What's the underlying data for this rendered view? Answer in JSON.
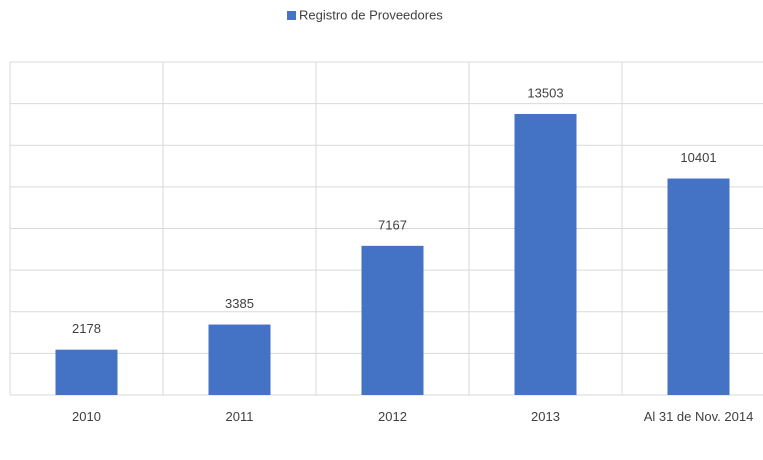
{
  "chart_data": {
    "type": "bar",
    "series": [
      {
        "name": "Registro de Proveedores",
        "color": "#4472c4",
        "values": [
          2178,
          3385,
          7167,
          13503,
          10401
        ]
      }
    ],
    "categories": [
      "2010",
      "2011",
      "2012",
      "2013",
      "Al 31 de Nov. 2014"
    ],
    "ylim": [
      0,
      16000
    ],
    "yticks": [
      0,
      2000,
      4000,
      6000,
      8000,
      10000,
      12000,
      14000,
      16000
    ],
    "grid": true
  }
}
